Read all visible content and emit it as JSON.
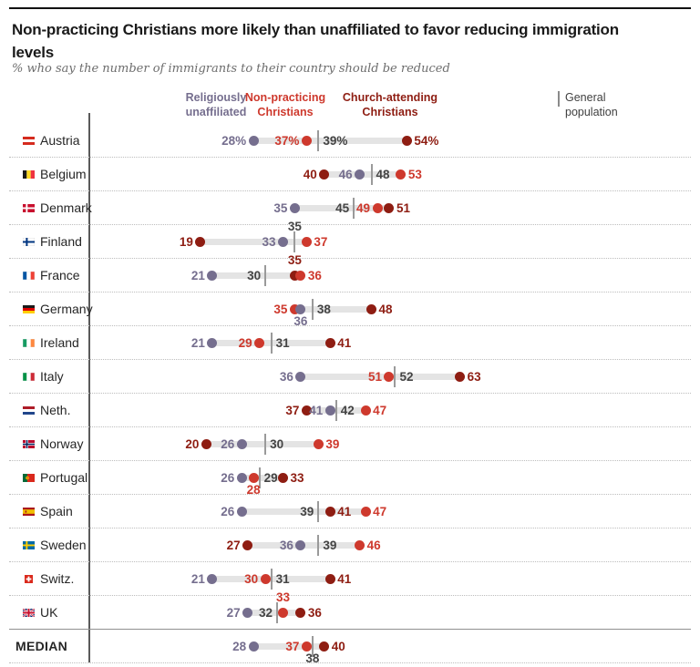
{
  "header": {
    "title": "Non-practicing Christians more likely than unaffiliated to favor reducing immigration levels",
    "subtitle": "% who say the number of immigrants to their country should be reduced"
  },
  "legend": {
    "unaffiliated": {
      "label": "Religiously unaffiliated",
      "color": "#756e8e"
    },
    "nonpracticing": {
      "label": "Non-practicing Christians",
      "color": "#ce392d"
    },
    "church": {
      "label": "Church-attending Christians",
      "color": "#8e1d12"
    },
    "general": {
      "label": "General population",
      "color": "#3f3f3f"
    }
  },
  "chart_data": {
    "type": "scatter",
    "subtype": "dot-plot",
    "xlim": [
      0,
      70
    ],
    "unit": "%",
    "series": {
      "unaffiliated": {
        "name": "Religiously unaffiliated",
        "color": "#756e8e",
        "marker": "dot"
      },
      "nonpracticing": {
        "name": "Non-practicing Christians",
        "color": "#ce392d",
        "marker": "dot"
      },
      "church": {
        "name": "Church-attending Christians",
        "color": "#8e1d12",
        "marker": "dot"
      },
      "general": {
        "name": "General population",
        "color": "#9a9a9a",
        "marker": "line",
        "label_color": "#444444"
      }
    },
    "rows": [
      {
        "country": "Austria",
        "flag": "austria",
        "points": [
          {
            "series": "unaffiliated",
            "value": 28,
            "label": "28%",
            "pos": "left"
          },
          {
            "series": "nonpracticing",
            "value": 37,
            "label": "37%",
            "pos": "left"
          },
          {
            "series": "general",
            "value": 39,
            "label": "39%",
            "pos": "right"
          },
          {
            "series": "church",
            "value": 54,
            "label": "54%",
            "pos": "right"
          }
        ]
      },
      {
        "country": "Belgium",
        "flag": "belgium",
        "points": [
          {
            "series": "church",
            "value": 40,
            "label": "40",
            "pos": "left"
          },
          {
            "series": "unaffiliated",
            "value": 46,
            "label": "46",
            "pos": "left"
          },
          {
            "series": "general",
            "value": 48,
            "label": "48",
            "pos": "right"
          },
          {
            "series": "nonpracticing",
            "value": 53,
            "label": "53",
            "pos": "right"
          }
        ]
      },
      {
        "country": "Denmark",
        "flag": "denmark",
        "points": [
          {
            "series": "unaffiliated",
            "value": 35,
            "label": "35",
            "pos": "left"
          },
          {
            "series": "general",
            "value": 45,
            "label": "45",
            "pos": "left"
          },
          {
            "series": "nonpracticing",
            "value": 49,
            "label": "49",
            "pos": "left"
          },
          {
            "series": "church",
            "value": 51,
            "label": "51",
            "pos": "right"
          }
        ]
      },
      {
        "country": "Finland",
        "flag": "finland",
        "points": [
          {
            "series": "church",
            "value": 19,
            "label": "19",
            "pos": "left"
          },
          {
            "series": "unaffiliated",
            "value": 33,
            "label": "33",
            "pos": "left"
          },
          {
            "series": "general",
            "value": 35,
            "label": "35",
            "pos": "above"
          },
          {
            "series": "nonpracticing",
            "value": 37,
            "label": "37",
            "pos": "right"
          }
        ]
      },
      {
        "country": "France",
        "flag": "france",
        "points": [
          {
            "series": "unaffiliated",
            "value": 21,
            "label": "21",
            "pos": "left"
          },
          {
            "series": "general",
            "value": 30,
            "label": "30",
            "pos": "left"
          },
          {
            "series": "church",
            "value": 35,
            "label": "35",
            "pos": "above"
          },
          {
            "series": "nonpracticing",
            "value": 36,
            "label": "36",
            "pos": "right"
          }
        ]
      },
      {
        "country": "Germany",
        "flag": "germany",
        "points": [
          {
            "series": "nonpracticing",
            "value": 35,
            "label": "35",
            "pos": "left"
          },
          {
            "series": "unaffiliated",
            "value": 36,
            "label": "36",
            "pos": "below"
          },
          {
            "series": "general",
            "value": 38,
            "label": "38",
            "pos": "right"
          },
          {
            "series": "church",
            "value": 48,
            "label": "48",
            "pos": "right"
          }
        ]
      },
      {
        "country": "Ireland",
        "flag": "ireland",
        "points": [
          {
            "series": "unaffiliated",
            "value": 21,
            "label": "21",
            "pos": "left"
          },
          {
            "series": "nonpracticing",
            "value": 29,
            "label": "29",
            "pos": "left"
          },
          {
            "series": "general",
            "value": 31,
            "label": "31",
            "pos": "right"
          },
          {
            "series": "church",
            "value": 41,
            "label": "41",
            "pos": "right"
          }
        ]
      },
      {
        "country": "Italy",
        "flag": "italy",
        "points": [
          {
            "series": "unaffiliated",
            "value": 36,
            "label": "36",
            "pos": "left"
          },
          {
            "series": "nonpracticing",
            "value": 51,
            "label": "51",
            "pos": "left"
          },
          {
            "series": "general",
            "value": 52,
            "label": "52",
            "pos": "right"
          },
          {
            "series": "church",
            "value": 63,
            "label": "63",
            "pos": "right"
          }
        ]
      },
      {
        "country": "Neth.",
        "flag": "netherlands",
        "points": [
          {
            "series": "church",
            "value": 37,
            "label": "37",
            "pos": "left"
          },
          {
            "series": "unaffiliated",
            "value": 41,
            "label": "41",
            "pos": "left"
          },
          {
            "series": "general",
            "value": 42,
            "label": "42",
            "pos": "right"
          },
          {
            "series": "nonpracticing",
            "value": 47,
            "label": "47",
            "pos": "right"
          }
        ]
      },
      {
        "country": "Norway",
        "flag": "norway",
        "points": [
          {
            "series": "church",
            "value": 20,
            "label": "20",
            "pos": "left"
          },
          {
            "series": "unaffiliated",
            "value": 26,
            "label": "26",
            "pos": "left"
          },
          {
            "series": "general",
            "value": 30,
            "label": "30",
            "pos": "right"
          },
          {
            "series": "nonpracticing",
            "value": 39,
            "label": "39",
            "pos": "right"
          }
        ]
      },
      {
        "country": "Portugal",
        "flag": "portugal",
        "points": [
          {
            "series": "unaffiliated",
            "value": 26,
            "label": "26",
            "pos": "left"
          },
          {
            "series": "nonpracticing",
            "value": 28,
            "label": "28",
            "pos": "below"
          },
          {
            "series": "general",
            "value": 29,
            "label": "29",
            "pos": "right"
          },
          {
            "series": "church",
            "value": 33,
            "label": "33",
            "pos": "right"
          }
        ]
      },
      {
        "country": "Spain",
        "flag": "spain",
        "points": [
          {
            "series": "unaffiliated",
            "value": 26,
            "label": "26",
            "pos": "left"
          },
          {
            "series": "general",
            "value": 39,
            "label": "39",
            "pos": "left"
          },
          {
            "series": "church",
            "value": 41,
            "label": "41",
            "pos": "right"
          },
          {
            "series": "nonpracticing",
            "value": 47,
            "label": "47",
            "pos": "right"
          }
        ]
      },
      {
        "country": "Sweden",
        "flag": "sweden",
        "points": [
          {
            "series": "church",
            "value": 27,
            "label": "27",
            "pos": "left"
          },
          {
            "series": "unaffiliated",
            "value": 36,
            "label": "36",
            "pos": "left"
          },
          {
            "series": "general",
            "value": 39,
            "label": "39",
            "pos": "right"
          },
          {
            "series": "nonpracticing",
            "value": 46,
            "label": "46",
            "pos": "right"
          }
        ]
      },
      {
        "country": "Switz.",
        "flag": "switzerland",
        "points": [
          {
            "series": "unaffiliated",
            "value": 21,
            "label": "21",
            "pos": "left"
          },
          {
            "series": "nonpracticing",
            "value": 30,
            "label": "30",
            "pos": "left"
          },
          {
            "series": "general",
            "value": 31,
            "label": "31",
            "pos": "right"
          },
          {
            "series": "church",
            "value": 41,
            "label": "41",
            "pos": "right"
          }
        ]
      },
      {
        "country": "UK",
        "flag": "uk",
        "points": [
          {
            "series": "unaffiliated",
            "value": 27,
            "label": "27",
            "pos": "left"
          },
          {
            "series": "general",
            "value": 32,
            "label": "32",
            "pos": "left"
          },
          {
            "series": "nonpracticing",
            "value": 33,
            "label": "33",
            "pos": "above"
          },
          {
            "series": "church",
            "value": 36,
            "label": "36",
            "pos": "right"
          }
        ]
      },
      {
        "country": "MEDIAN",
        "flag": null,
        "points": [
          {
            "series": "unaffiliated",
            "value": 28,
            "label": "28",
            "pos": "left"
          },
          {
            "series": "nonpracticing",
            "value": 37,
            "label": "37",
            "pos": "left"
          },
          {
            "series": "general",
            "value": 38,
            "label": "38",
            "pos": "below"
          },
          {
            "series": "church",
            "value": 40,
            "label": "40",
            "pos": "right"
          }
        ]
      }
    ]
  }
}
